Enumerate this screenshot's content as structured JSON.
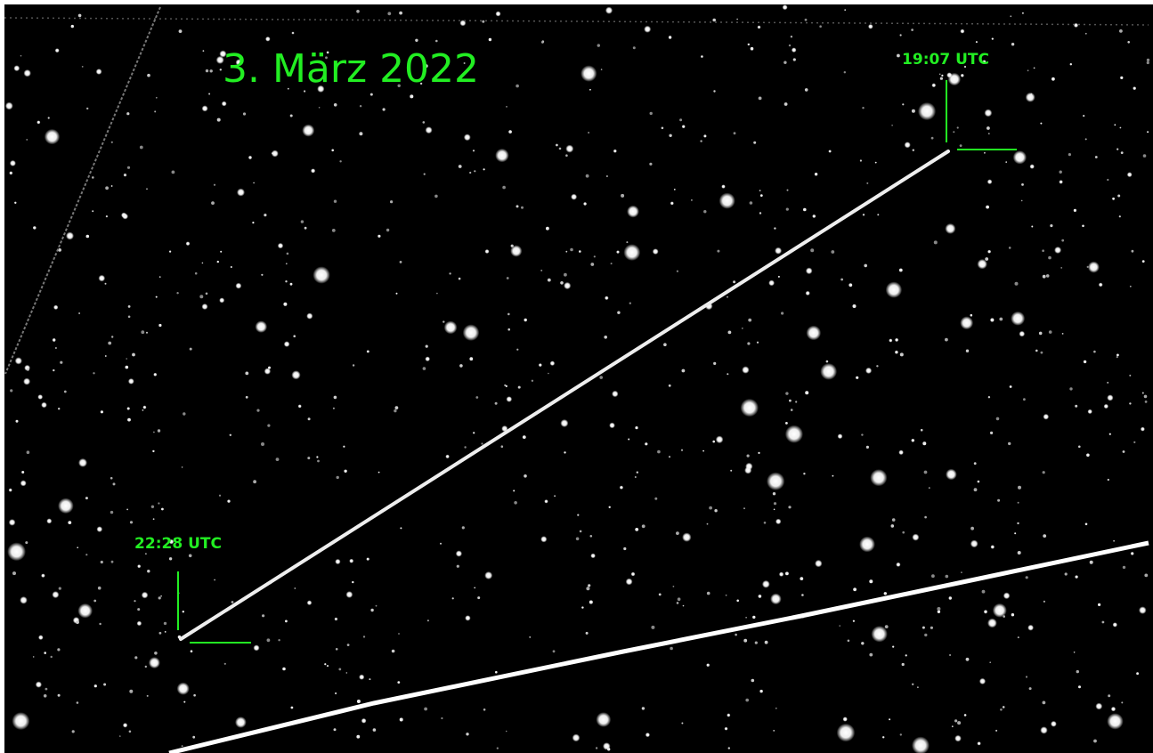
{
  "annotations": {
    "date": "3. März 2022",
    "start_time": "19:07 UTC",
    "end_time": "22:28 UTC"
  }
}
